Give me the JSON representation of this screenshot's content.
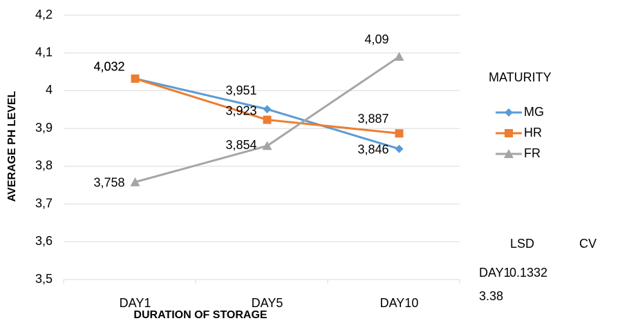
{
  "chart_data": {
    "type": "line",
    "y_axis_label": "AVERAGE PH LEVEL",
    "x_axis_label": "DURATION OF STORAGE",
    "legend_title": "MATURITY",
    "categories": [
      "DAY1",
      "DAY5",
      "DAY10"
    ],
    "series": [
      {
        "name": "MG",
        "color": "#5b9bd5",
        "marker": "diamond",
        "values": [
          4.032,
          3.951,
          3.846
        ],
        "value_labels": [
          "4,032",
          "3,951",
          "3,846"
        ]
      },
      {
        "name": "HR",
        "color": "#ed7d31",
        "marker": "square",
        "values": [
          4.032,
          3.923,
          3.887
        ],
        "value_labels": [
          "4,032",
          "3,923",
          "3,887"
        ]
      },
      {
        "name": "FR",
        "color": "#a5a5a5",
        "marker": "triangle",
        "values": [
          3.758,
          3.854,
          4.09
        ],
        "value_labels": [
          "3,758",
          "3,854",
          "4,09"
        ]
      }
    ],
    "ylim": [
      3.5,
      4.2
    ],
    "yticks": [
      {
        "value": 3.5,
        "label": "3,5"
      },
      {
        "value": 3.6,
        "label": "3,6"
      },
      {
        "value": 3.7,
        "label": "3,7"
      },
      {
        "value": 3.8,
        "label": "3,8"
      },
      {
        "value": 3.9,
        "label": "3,9"
      },
      4,
      {
        "value": 4.1,
        "label": "4,1"
      },
      {
        "value": 4.2,
        "label": "4,2"
      }
    ],
    "grid": true,
    "legend_position": "right",
    "annotations": [
      "LSD",
      "CV",
      "DAY1",
      "0.1332",
      "3.38"
    ]
  }
}
